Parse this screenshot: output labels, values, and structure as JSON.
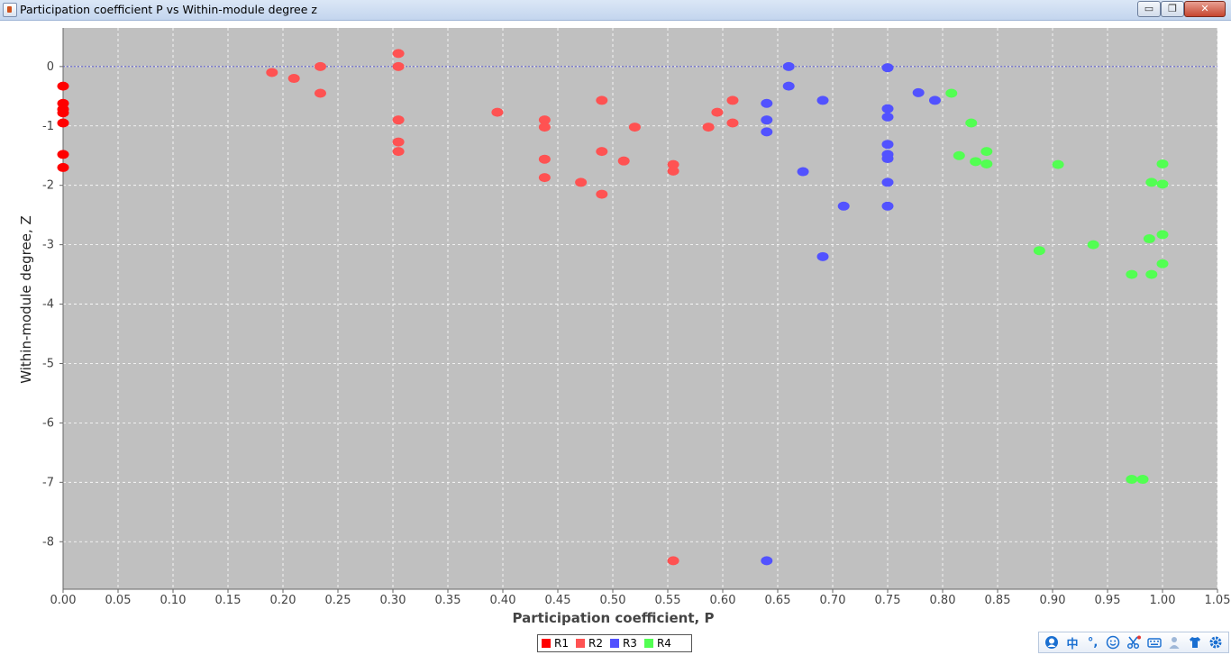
{
  "window": {
    "title": "Participation coefficient P vs Within-module degree z",
    "min_glyph": "▭",
    "max_glyph": "❐",
    "close_glyph": "✕"
  },
  "chart_data": {
    "type": "scatter",
    "title": "",
    "xlabel": "Participation coefficient, P",
    "ylabel": "Within-module degree, Z",
    "xlim": [
      0.0,
      1.05
    ],
    "ylim": [
      -8.8,
      0.65
    ],
    "x_ticks": [
      "0.00",
      "0.05",
      "0.10",
      "0.15",
      "0.20",
      "0.25",
      "0.30",
      "0.35",
      "0.40",
      "0.45",
      "0.50",
      "0.55",
      "0.60",
      "0.65",
      "0.70",
      "0.75",
      "0.80",
      "0.85",
      "0.90",
      "0.95",
      "1.00",
      "1.05"
    ],
    "y_ticks": [
      "0",
      "-1",
      "-2",
      "-3",
      "-4",
      "-5",
      "-6",
      "-7",
      "-8"
    ],
    "grid": true,
    "reference_line_y": 0,
    "legend_position": "bottom-center",
    "series": [
      {
        "name": "R1",
        "color": "#ff0000",
        "points": [
          [
            0.0,
            -0.33
          ],
          [
            0.0,
            -0.62
          ],
          [
            0.0,
            -0.72
          ],
          [
            0.0,
            -0.78
          ],
          [
            0.0,
            -0.95
          ],
          [
            0.0,
            -1.48
          ],
          [
            0.0,
            -1.7
          ]
        ]
      },
      {
        "name": "R2",
        "color": "#ff5252",
        "points": [
          [
            0.19,
            -0.1
          ],
          [
            0.21,
            -0.2
          ],
          [
            0.234,
            0.0
          ],
          [
            0.234,
            -0.45
          ],
          [
            0.305,
            0.22
          ],
          [
            0.305,
            0.0
          ],
          [
            0.305,
            -0.9
          ],
          [
            0.305,
            -1.27
          ],
          [
            0.305,
            -1.43
          ],
          [
            0.395,
            -0.77
          ],
          [
            0.438,
            -0.9
          ],
          [
            0.438,
            -1.02
          ],
          [
            0.438,
            -1.56
          ],
          [
            0.438,
            -1.87
          ],
          [
            0.471,
            -1.95
          ],
          [
            0.49,
            -0.57
          ],
          [
            0.49,
            -1.43
          ],
          [
            0.49,
            -2.15
          ],
          [
            0.51,
            -1.59
          ],
          [
            0.52,
            -1.02
          ],
          [
            0.555,
            -1.65
          ],
          [
            0.555,
            -1.76
          ],
          [
            0.555,
            -8.32
          ],
          [
            0.587,
            -1.02
          ],
          [
            0.595,
            -0.77
          ],
          [
            0.609,
            -0.57
          ],
          [
            0.609,
            -0.95
          ]
        ]
      },
      {
        "name": "R3",
        "color": "#5252ff",
        "points": [
          [
            0.64,
            -0.62
          ],
          [
            0.64,
            -0.9
          ],
          [
            0.64,
            -1.1
          ],
          [
            0.64,
            -8.32
          ],
          [
            0.66,
            0.0
          ],
          [
            0.66,
            -0.33
          ],
          [
            0.673,
            -1.77
          ],
          [
            0.691,
            -0.57
          ],
          [
            0.691,
            -3.2
          ],
          [
            0.71,
            -2.35
          ],
          [
            0.75,
            -0.02
          ],
          [
            0.75,
            -0.71
          ],
          [
            0.75,
            -0.85
          ],
          [
            0.75,
            -1.31
          ],
          [
            0.75,
            -1.48
          ],
          [
            0.75,
            -1.55
          ],
          [
            0.75,
            -1.95
          ],
          [
            0.75,
            -2.35
          ],
          [
            0.778,
            -0.44
          ],
          [
            0.793,
            -0.57
          ]
        ]
      },
      {
        "name": "R4",
        "color": "#52ff52",
        "points": [
          [
            0.808,
            -0.45
          ],
          [
            0.815,
            -1.5
          ],
          [
            0.826,
            -0.95
          ],
          [
            0.83,
            -1.6
          ],
          [
            0.84,
            -1.43
          ],
          [
            0.84,
            -1.64
          ],
          [
            0.888,
            -3.1
          ],
          [
            0.905,
            -1.65
          ],
          [
            0.937,
            -3.0
          ],
          [
            0.972,
            -3.5
          ],
          [
            0.972,
            -6.95
          ],
          [
            0.982,
            -6.95
          ],
          [
            0.988,
            -2.9
          ],
          [
            0.99,
            -1.95
          ],
          [
            0.99,
            -3.5
          ],
          [
            1.0,
            -1.64
          ],
          [
            1.0,
            -1.98
          ],
          [
            1.0,
            -2.83
          ],
          [
            1.0,
            -3.32
          ]
        ]
      }
    ]
  },
  "tray": {
    "ime_label": "中",
    "punct_label": "°,"
  }
}
